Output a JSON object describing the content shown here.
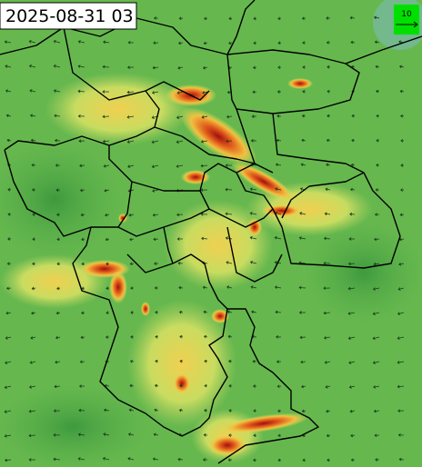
{
  "timestamp": "2025-08-31 03",
  "wind_legend": {
    "label": "10"
  }
}
